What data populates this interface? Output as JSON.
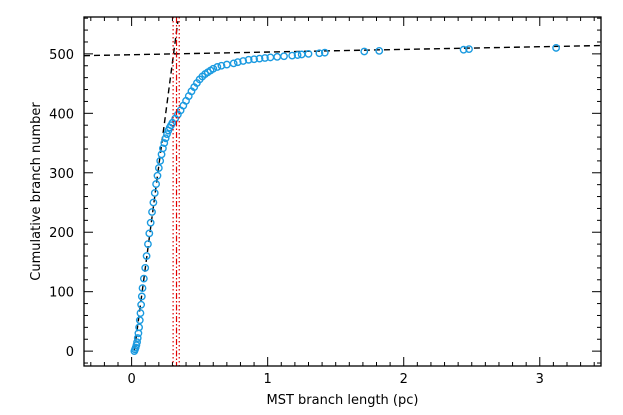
{
  "chart_data": {
    "type": "scatter",
    "xlabel": "MST branch length (pc)",
    "ylabel": "Cumulative branch number",
    "xlim": [
      -0.35,
      3.45
    ],
    "ylim": [
      -25,
      562
    ],
    "x_ticks": [
      0,
      1,
      2,
      3
    ],
    "y_ticks": [
      0,
      100,
      200,
      300,
      400,
      500
    ],
    "x_tick_labels": [
      "0",
      "1",
      "2",
      "3"
    ],
    "y_tick_labels": [
      "0",
      "100",
      "200",
      "300",
      "400",
      "500"
    ],
    "grid": false,
    "legend": "none",
    "colors": {
      "points": "#1a9ae0",
      "fit_lines": "#000000",
      "vertical_markers": "#e00000"
    },
    "series": [
      {
        "marker": "open-circle",
        "points": [
          [
            0.02,
            0
          ],
          [
            0.025,
            3
          ],
          [
            0.03,
            6
          ],
          [
            0.035,
            10
          ],
          [
            0.04,
            15
          ],
          [
            0.045,
            22
          ],
          [
            0.05,
            30
          ],
          [
            0.055,
            40
          ],
          [
            0.06,
            52
          ],
          [
            0.065,
            64
          ],
          [
            0.07,
            78
          ],
          [
            0.075,
            92
          ],
          [
            0.08,
            106
          ],
          [
            0.09,
            122
          ],
          [
            0.1,
            140
          ],
          [
            0.11,
            160
          ],
          [
            0.12,
            180
          ],
          [
            0.13,
            198
          ],
          [
            0.14,
            216
          ],
          [
            0.15,
            234
          ],
          [
            0.16,
            250
          ],
          [
            0.17,
            266
          ],
          [
            0.18,
            281
          ],
          [
            0.19,
            295
          ],
          [
            0.2,
            308
          ],
          [
            0.21,
            320
          ],
          [
            0.22,
            331
          ],
          [
            0.23,
            341
          ],
          [
            0.24,
            350
          ],
          [
            0.25,
            358
          ],
          [
            0.26,
            365
          ],
          [
            0.27,
            371
          ],
          [
            0.28,
            376
          ],
          [
            0.29,
            380
          ],
          [
            0.3,
            384
          ],
          [
            0.32,
            391
          ],
          [
            0.34,
            398
          ],
          [
            0.36,
            405
          ],
          [
            0.38,
            413
          ],
          [
            0.4,
            421
          ],
          [
            0.42,
            429
          ],
          [
            0.44,
            437
          ],
          [
            0.46,
            444
          ],
          [
            0.48,
            451
          ],
          [
            0.5,
            457
          ],
          [
            0.52,
            462
          ],
          [
            0.54,
            466
          ],
          [
            0.56,
            469
          ],
          [
            0.58,
            472
          ],
          [
            0.6,
            475
          ],
          [
            0.63,
            478
          ],
          [
            0.66,
            480
          ],
          [
            0.7,
            482
          ],
          [
            0.75,
            484
          ],
          [
            0.78,
            486
          ],
          [
            0.82,
            488
          ],
          [
            0.86,
            490
          ],
          [
            0.9,
            491
          ],
          [
            0.94,
            492
          ],
          [
            0.98,
            493
          ],
          [
            1.02,
            494
          ],
          [
            1.07,
            495
          ],
          [
            1.12,
            496
          ],
          [
            1.18,
            497
          ],
          [
            1.22,
            498
          ],
          [
            1.25,
            499
          ],
          [
            1.3,
            500
          ],
          [
            1.38,
            501
          ],
          [
            1.42,
            502
          ],
          [
            1.71,
            504
          ],
          [
            1.82,
            505
          ],
          [
            2.44,
            507
          ],
          [
            2.48,
            508
          ],
          [
            3.12,
            510
          ]
        ]
      }
    ],
    "fit_lines": [
      {
        "style": "dashed",
        "x": [
          -0.35,
          3.45
        ],
        "y": [
          497,
          514
        ]
      },
      {
        "style": "dashed",
        "x": [
          0.02,
          0.34
        ],
        "y": [
          0,
          555
        ]
      }
    ],
    "vertical_lines": [
      {
        "x": 0.305,
        "style": "dotted"
      },
      {
        "x": 0.33,
        "style": "dashed"
      },
      {
        "x": 0.35,
        "style": "dotted"
      }
    ]
  }
}
